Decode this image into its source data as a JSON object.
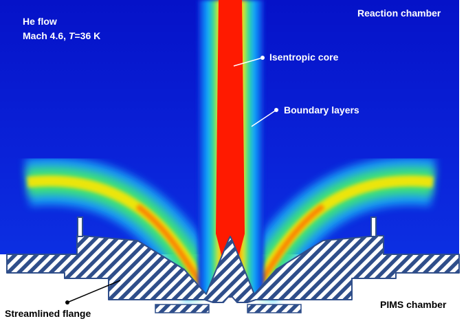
{
  "labels": {
    "flow_title": "He flow",
    "flow_conditions_prefix": "Mach 4.6, ",
    "flow_conditions_var": "T",
    "flow_conditions_suffix": "=36 K",
    "reaction_chamber": "Reaction chamber",
    "isentropic_core": "Isentropic core",
    "boundary_layers": "Boundary layers",
    "pims_chamber": "PIMS chamber",
    "streamlined_flange": "Streamlined flange"
  },
  "colors": {
    "background_flow": "#0a1fd6",
    "core": "#ff1a00",
    "shear_yellow": "#ffe600",
    "shear_green": "#35e06a",
    "shear_cyan": "#15b8ff",
    "hatch_stroke": "#2f4e8a",
    "hatch_fill": "#ffffff"
  }
}
